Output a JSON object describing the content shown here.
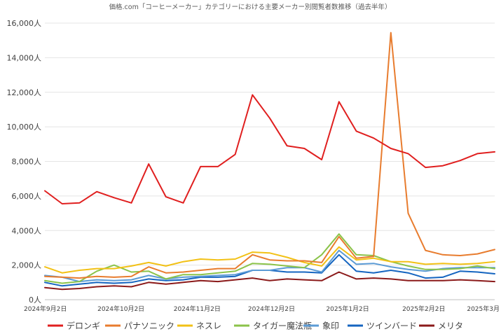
{
  "chart_data": {
    "type": "line",
    "title": "価格.com「コーヒーメーカー」カテゴリーにおける主要メーカー別閲覧者数推移（過去半年）",
    "xlabel": "",
    "ylabel": "",
    "ylim": [
      0,
      16000
    ],
    "yticks": [
      0,
      2000,
      4000,
      6000,
      8000,
      10000,
      12000,
      14000,
      16000
    ],
    "ytick_labels": [
      "0人",
      "2,000人",
      "4,000人",
      "6,000人",
      "8,000人",
      "10,000人",
      "12,000人",
      "14,000人",
      "16,000人"
    ],
    "x_count": 27,
    "xtick_labels": [
      {
        "index": 0,
        "label": "2024年9月2日"
      },
      {
        "index": 4.4,
        "label": "2024年10月2日"
      },
      {
        "index": 8.8,
        "label": "2024年11月2日"
      },
      {
        "index": 13.1,
        "label": "2024年12月2日"
      },
      {
        "index": 17.5,
        "label": "2025年1月2日"
      },
      {
        "index": 21.9,
        "label": "2025年2月2日"
      },
      {
        "index": 26,
        "label": "2025年3月"
      }
    ],
    "legend_position": "bottom",
    "grid": true,
    "series": [
      {
        "name": "デロンギ",
        "color": "#e01f1f",
        "values": [
          6300,
          5550,
          5600,
          6250,
          5900,
          5600,
          7850,
          5950,
          5600,
          7700,
          7700,
          8400,
          11850,
          10500,
          8900,
          8750,
          8100,
          11450,
          9750,
          9350,
          8750,
          8450,
          7650,
          7750,
          8050,
          8450,
          8550
        ]
      },
      {
        "name": "パナソニック",
        "color": "#e87c2e",
        "values": [
          1350,
          1300,
          1250,
          1350,
          1300,
          1350,
          1900,
          1550,
          1600,
          1700,
          1800,
          1800,
          2600,
          2300,
          2250,
          2250,
          2150,
          3650,
          2400,
          2500,
          15450,
          5000,
          2850,
          2600,
          2550,
          2650,
          2900
        ]
      },
      {
        "name": "ネスレ",
        "color": "#f2c116",
        "values": [
          1900,
          1550,
          1700,
          1800,
          1800,
          1950,
          2150,
          1950,
          2200,
          2350,
          2300,
          2350,
          2750,
          2700,
          2450,
          2150,
          1950,
          3050,
          2300,
          2400,
          2200,
          2200,
          2050,
          2100,
          2050,
          2100,
          2200
        ]
      },
      {
        "name": "タイガー魔法瓶",
        "color": "#8bc34a",
        "values": [
          1100,
          950,
          1050,
          1650,
          2000,
          1600,
          1650,
          1200,
          1450,
          1450,
          1550,
          1650,
          2100,
          2050,
          1950,
          1850,
          2600,
          3800,
          2600,
          2550,
          2200,
          1950,
          1750,
          1750,
          1800,
          1950,
          1800
        ]
      },
      {
        "name": "象印",
        "color": "#5b9bd5",
        "values": [
          1400,
          1300,
          1050,
          1150,
          1100,
          1150,
          1400,
          1200,
          1300,
          1350,
          1400,
          1450,
          1700,
          1700,
          1850,
          1850,
          1600,
          2850,
          2050,
          2100,
          1900,
          1750,
          1650,
          1800,
          1850,
          1850,
          1850
        ]
      },
      {
        "name": "ツインバード",
        "color": "#1565c0",
        "values": [
          1000,
          800,
          900,
          1000,
          950,
          1000,
          1200,
          1100,
          1150,
          1300,
          1300,
          1350,
          1700,
          1700,
          1600,
          1600,
          1550,
          2600,
          1650,
          1550,
          1700,
          1550,
          1250,
          1300,
          1650,
          1600,
          1500
        ]
      },
      {
        "name": "メリタ",
        "color": "#8b1a1a",
        "values": [
          700,
          600,
          650,
          750,
          800,
          750,
          1000,
          900,
          1000,
          1100,
          1050,
          1150,
          1250,
          1100,
          1200,
          1150,
          1100,
          1600,
          1200,
          1250,
          1200,
          1100,
          1100,
          1100,
          1150,
          1100,
          1050
        ]
      }
    ]
  }
}
